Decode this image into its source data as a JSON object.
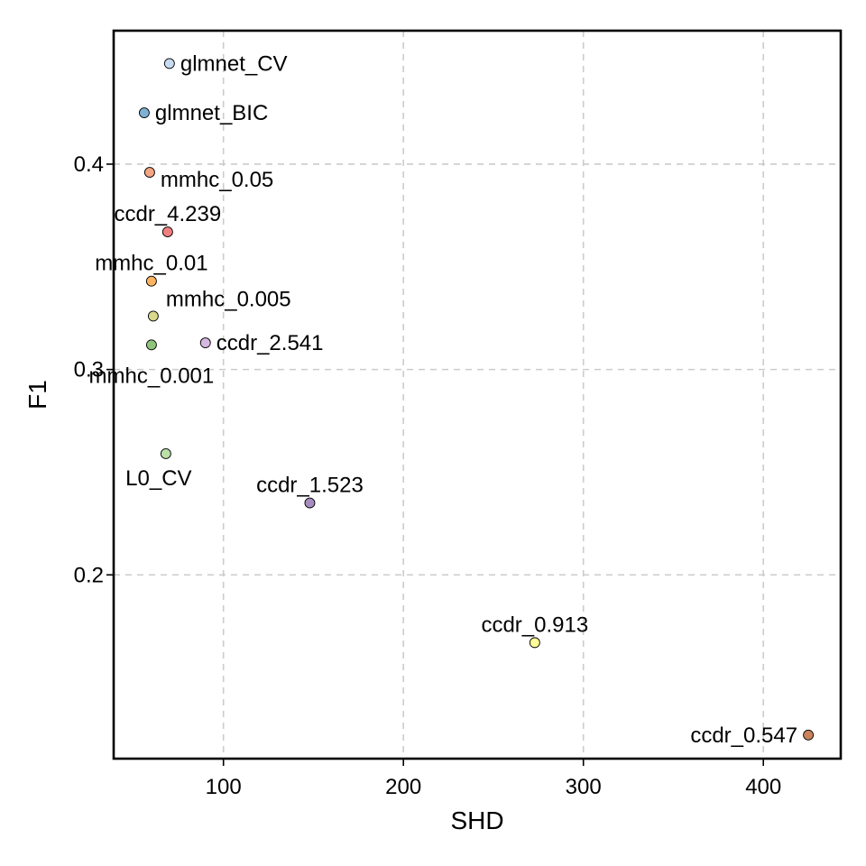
{
  "chart_data": {
    "type": "scatter",
    "xlabel": "SHD",
    "ylabel": "F1",
    "xlim": [
      39,
      443
    ],
    "ylim": [
      0.1105,
      0.465
    ],
    "x_ticks": [
      100,
      200,
      300,
      400
    ],
    "y_ticks": [
      0.2,
      0.3,
      0.4
    ],
    "x_tick_labels": [
      "100",
      "200",
      "300",
      "400"
    ],
    "y_tick_labels": [
      "0.2",
      "0.3",
      "0.4"
    ],
    "grid": true,
    "legend": "none",
    "points": [
      {
        "label": "glmnet_CV",
        "x": 70,
        "y": 0.449,
        "color": "#c6dbef",
        "label_pos": "right"
      },
      {
        "label": "glmnet_BIC",
        "x": 56,
        "y": 0.425,
        "color": "#7fb1d3",
        "label_pos": "right"
      },
      {
        "label": "mmhc_0.05",
        "x": 59,
        "y": 0.396,
        "color": "#f4a582",
        "label_pos": "right-below"
      },
      {
        "label": "ccdr_4.239",
        "x": 69,
        "y": 0.367,
        "color": "#f08080",
        "label_pos": "above"
      },
      {
        "label": "mmhc_0.01",
        "x": 60,
        "y": 0.343,
        "color": "#fdb462",
        "label_pos": "above"
      },
      {
        "label": "mmhc_0.005",
        "x": 61,
        "y": 0.326,
        "color": "#d9d98c",
        "label_pos": "right-above"
      },
      {
        "label": "ccdr_2.541",
        "x": 90,
        "y": 0.313,
        "color": "#d5b8e0",
        "label_pos": "right"
      },
      {
        "label": "mmhc_0.001",
        "x": 60,
        "y": 0.312,
        "color": "#8fc47c",
        "label_pos": "below"
      },
      {
        "label": "L0_CV",
        "x": 68,
        "y": 0.259,
        "color": "#b8e0a8",
        "label_pos": "below-left"
      },
      {
        "label": "ccdr_1.523",
        "x": 148,
        "y": 0.235,
        "color": "#a78cbf",
        "label_pos": "above"
      },
      {
        "label": "ccdr_0.913",
        "x": 273,
        "y": 0.167,
        "color": "#ffff99",
        "label_pos": "above"
      },
      {
        "label": "ccdr_0.547",
        "x": 425,
        "y": 0.122,
        "color": "#c9825b",
        "label_pos": "left"
      }
    ]
  }
}
